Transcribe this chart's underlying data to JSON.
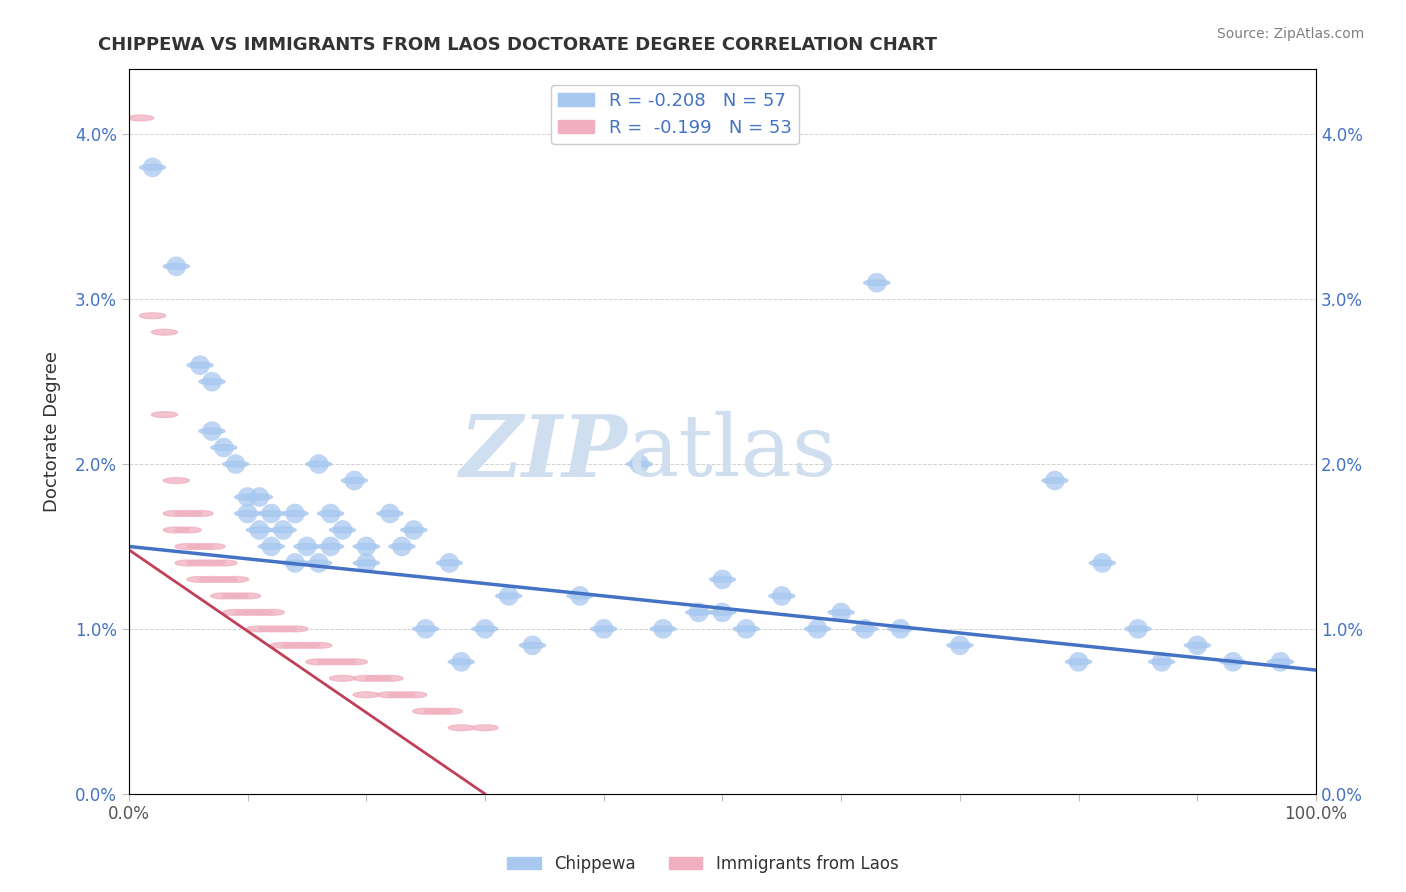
{
  "title": "CHIPPEWA VS IMMIGRANTS FROM LAOS DOCTORATE DEGREE CORRELATION CHART",
  "source": "Source: ZipAtlas.com",
  "ylabel": "Doctorate Degree",
  "xlim": [
    0,
    1.0
  ],
  "ylim": [
    -0.005,
    0.044
  ],
  "plot_ylim": [
    0.0,
    0.044
  ],
  "yticks": [
    0.0,
    0.01,
    0.02,
    0.03,
    0.04
  ],
  "ytick_labels": [
    "0.0%",
    "1.0%",
    "2.0%",
    "3.0%",
    "4.0%"
  ],
  "xticks": [
    0.0,
    0.1,
    0.2,
    0.3,
    0.4,
    0.5,
    0.6,
    0.7,
    0.8,
    0.9,
    1.0
  ],
  "xtick_labels": [
    "0.0%",
    "",
    "",
    "",
    "",
    "",
    "",
    "",
    "",
    "",
    "100.0%"
  ],
  "legend1_R": "-0.208",
  "legend1_N": "57",
  "legend2_R": "-0.199",
  "legend2_N": "53",
  "blue_color": "#a8c8f0",
  "pink_color": "#f0b0c0",
  "trendline_blue": "#4472c4",
  "trendline_pink": "#c0405a",
  "chippewa_points": [
    [
      0.02,
      0.038
    ],
    [
      0.04,
      0.032
    ],
    [
      0.06,
      0.026
    ],
    [
      0.07,
      0.022
    ],
    [
      0.07,
      0.025
    ],
    [
      0.08,
      0.021
    ],
    [
      0.09,
      0.02
    ],
    [
      0.1,
      0.018
    ],
    [
      0.1,
      0.017
    ],
    [
      0.11,
      0.016
    ],
    [
      0.11,
      0.018
    ],
    [
      0.12,
      0.015
    ],
    [
      0.12,
      0.017
    ],
    [
      0.13,
      0.016
    ],
    [
      0.14,
      0.017
    ],
    [
      0.14,
      0.014
    ],
    [
      0.15,
      0.015
    ],
    [
      0.16,
      0.02
    ],
    [
      0.16,
      0.014
    ],
    [
      0.17,
      0.015
    ],
    [
      0.17,
      0.017
    ],
    [
      0.18,
      0.016
    ],
    [
      0.19,
      0.019
    ],
    [
      0.2,
      0.015
    ],
    [
      0.2,
      0.014
    ],
    [
      0.22,
      0.017
    ],
    [
      0.23,
      0.015
    ],
    [
      0.24,
      0.016
    ],
    [
      0.25,
      0.01
    ],
    [
      0.27,
      0.014
    ],
    [
      0.28,
      0.008
    ],
    [
      0.3,
      0.01
    ],
    [
      0.32,
      0.012
    ],
    [
      0.34,
      0.009
    ],
    [
      0.38,
      0.012
    ],
    [
      0.4,
      0.01
    ],
    [
      0.43,
      0.02
    ],
    [
      0.45,
      0.01
    ],
    [
      0.48,
      0.011
    ],
    [
      0.5,
      0.011
    ],
    [
      0.5,
      0.013
    ],
    [
      0.52,
      0.01
    ],
    [
      0.55,
      0.012
    ],
    [
      0.58,
      0.01
    ],
    [
      0.6,
      0.011
    ],
    [
      0.62,
      0.01
    ],
    [
      0.63,
      0.031
    ],
    [
      0.65,
      0.01
    ],
    [
      0.7,
      0.009
    ],
    [
      0.78,
      0.019
    ],
    [
      0.8,
      0.008
    ],
    [
      0.82,
      0.014
    ],
    [
      0.85,
      0.01
    ],
    [
      0.87,
      0.008
    ],
    [
      0.9,
      0.009
    ],
    [
      0.93,
      0.008
    ],
    [
      0.97,
      0.008
    ]
  ],
  "laos_points": [
    [
      0.01,
      0.041
    ],
    [
      0.02,
      0.029
    ],
    [
      0.03,
      0.028
    ],
    [
      0.03,
      0.023
    ],
    [
      0.04,
      0.019
    ],
    [
      0.04,
      0.017
    ],
    [
      0.04,
      0.016
    ],
    [
      0.05,
      0.017
    ],
    [
      0.05,
      0.016
    ],
    [
      0.05,
      0.015
    ],
    [
      0.05,
      0.014
    ],
    [
      0.06,
      0.017
    ],
    [
      0.06,
      0.015
    ],
    [
      0.06,
      0.014
    ],
    [
      0.06,
      0.013
    ],
    [
      0.07,
      0.015
    ],
    [
      0.07,
      0.014
    ],
    [
      0.07,
      0.013
    ],
    [
      0.08,
      0.014
    ],
    [
      0.08,
      0.013
    ],
    [
      0.08,
      0.012
    ],
    [
      0.09,
      0.013
    ],
    [
      0.09,
      0.012
    ],
    [
      0.09,
      0.011
    ],
    [
      0.1,
      0.012
    ],
    [
      0.1,
      0.011
    ],
    [
      0.11,
      0.011
    ],
    [
      0.11,
      0.01
    ],
    [
      0.12,
      0.011
    ],
    [
      0.12,
      0.01
    ],
    [
      0.13,
      0.01
    ],
    [
      0.13,
      0.009
    ],
    [
      0.14,
      0.01
    ],
    [
      0.14,
      0.009
    ],
    [
      0.15,
      0.009
    ],
    [
      0.16,
      0.009
    ],
    [
      0.16,
      0.008
    ],
    [
      0.17,
      0.008
    ],
    [
      0.18,
      0.008
    ],
    [
      0.18,
      0.007
    ],
    [
      0.19,
      0.008
    ],
    [
      0.2,
      0.007
    ],
    [
      0.2,
      0.006
    ],
    [
      0.21,
      0.007
    ],
    [
      0.22,
      0.007
    ],
    [
      0.22,
      0.006
    ],
    [
      0.23,
      0.006
    ],
    [
      0.24,
      0.006
    ],
    [
      0.25,
      0.005
    ],
    [
      0.26,
      0.005
    ],
    [
      0.27,
      0.005
    ],
    [
      0.28,
      0.004
    ],
    [
      0.3,
      0.004
    ]
  ],
  "blue_trend_x": [
    0.0,
    1.0
  ],
  "blue_trend_y": [
    0.015,
    0.0075
  ],
  "pink_trend_x": [
    0.0,
    0.32
  ],
  "pink_trend_y": [
    0.0148,
    -0.001
  ],
  "background_color": "#ffffff",
  "grid_color": "#cccccc",
  "title_color": "#333333",
  "text_color": "#4472c4",
  "legend_label_blue": "Chippewa",
  "legend_label_pink": "Immigrants from Laos"
}
